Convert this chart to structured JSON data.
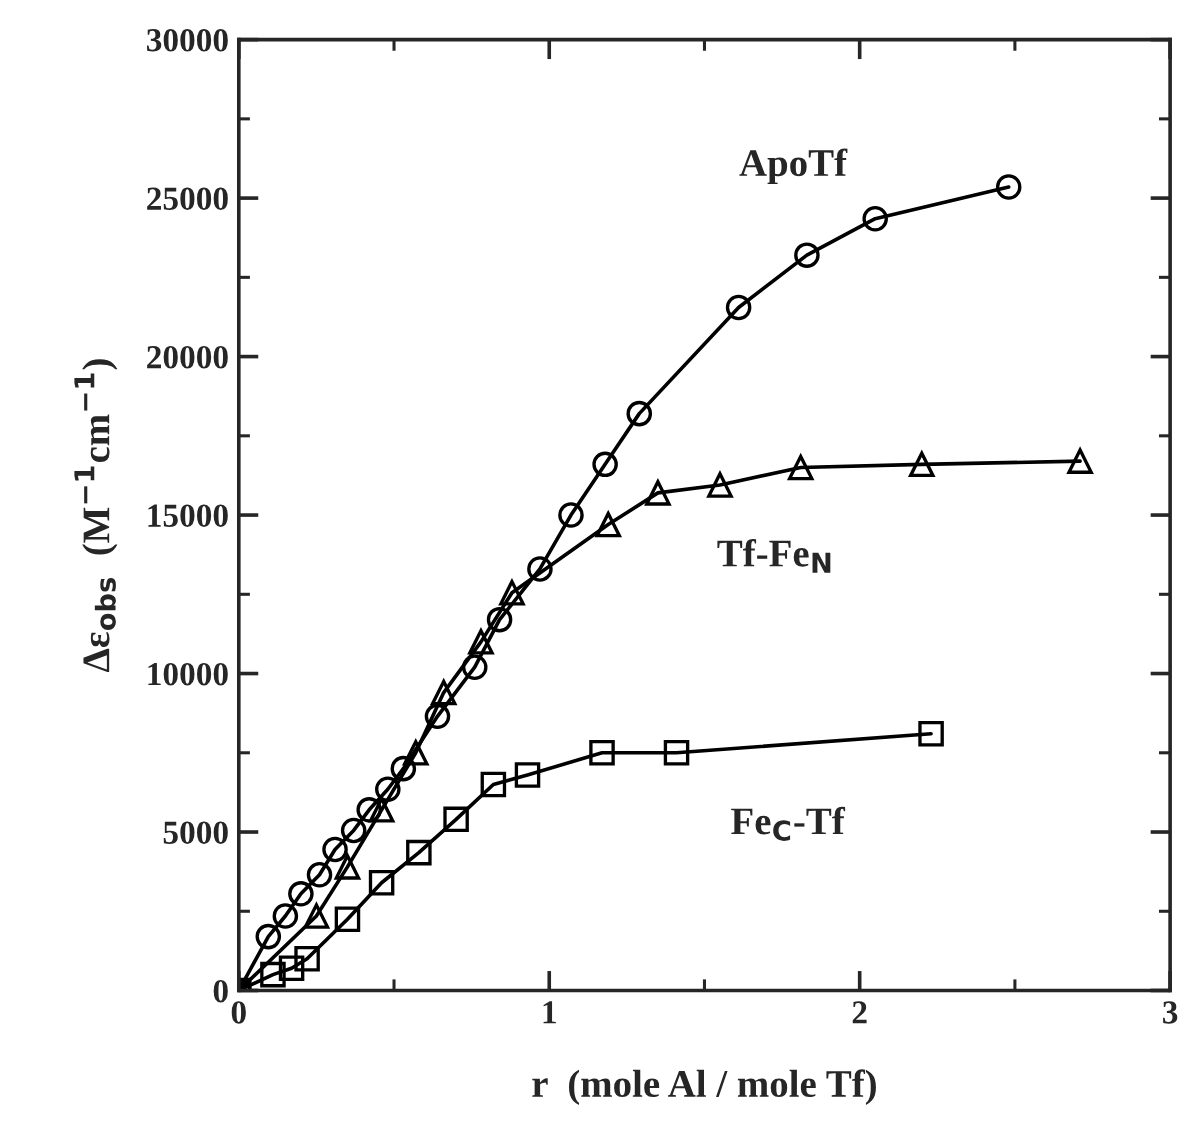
{
  "chart_data": {
    "type": "line",
    "xlabel": "r  (mole Al / mole Tf)",
    "ylabel": "Δε$_{obs}$  (M$^{−1}$cm$^{−1}$)",
    "xlim": [
      0,
      3
    ],
    "xticks": [
      0,
      1,
      2,
      3
    ],
    "ylim": [
      0,
      30000
    ],
    "yticks": [
      0,
      5000,
      10000,
      15000,
      20000,
      25000,
      30000
    ],
    "grid": false,
    "line_style": "solid",
    "series": [
      {
        "name": "ApoTf",
        "color": "#000000",
        "marker": "circle",
        "x": [
          0,
          0.095,
          0.15,
          0.2,
          0.26,
          0.31,
          0.37,
          0.42,
          0.48,
          0.53,
          0.64,
          0.76,
          0.84,
          0.97,
          1.07,
          1.18,
          1.29,
          1.61,
          1.83,
          2.05,
          2.48
        ],
        "values": [
          0,
          1700,
          2350,
          3050,
          3650,
          4450,
          5050,
          5700,
          6350,
          7000,
          8650,
          10200,
          11700,
          13300,
          15000,
          16600,
          18200,
          21550,
          23200,
          24350,
          25350
        ]
      },
      {
        "name": "Tf-Fe$_{N}$",
        "color": "#000000",
        "marker": "triangle",
        "x": [
          0,
          0.25,
          0.35,
          0.46,
          0.57,
          0.66,
          0.78,
          0.88,
          1.19,
          1.35,
          1.55,
          1.81,
          2.2,
          2.71
        ],
        "values": [
          0,
          2350,
          3900,
          5700,
          7500,
          9400,
          11000,
          12550,
          14700,
          15700,
          15950,
          16500,
          16600,
          16700
        ]
      },
      {
        "name": "Fe$_{C}$-Tf",
        "color": "#000000",
        "marker": "square",
        "x": [
          0,
          0.11,
          0.17,
          0.22,
          0.35,
          0.46,
          0.58,
          0.7,
          0.82,
          0.93,
          1.17,
          1.41,
          2.23
        ],
        "values": [
          0,
          500,
          700,
          1000,
          2250,
          3400,
          4350,
          5400,
          6500,
          6800,
          7500,
          7500,
          8100
        ]
      }
    ]
  }
}
